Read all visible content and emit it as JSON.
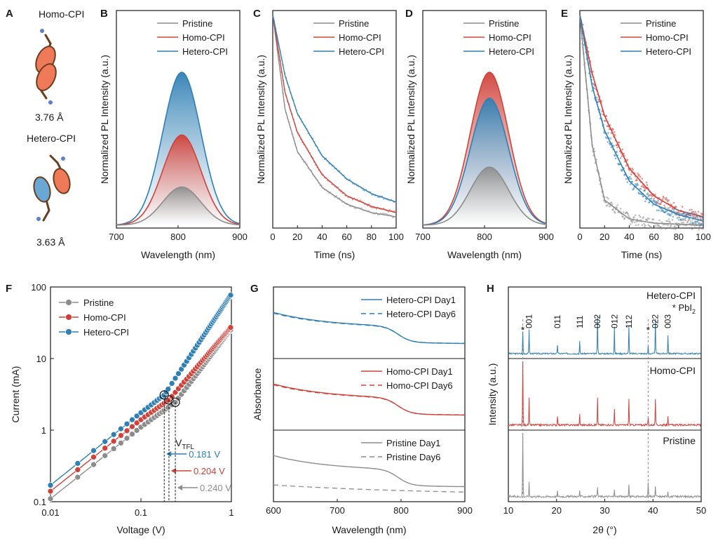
{
  "colors": {
    "pristine": "#8c8c8c",
    "homo": "#d0413a",
    "hetero": "#2f7fb4",
    "axis": "#1a1a1a"
  },
  "panel_a": {
    "label": "A",
    "homo_title": "Homo-CPI",
    "homo_distance": "3.76 Å",
    "hetero_title": "Hetero-CPI",
    "hetero_distance": "3.63 Å"
  },
  "panel_f": {
    "vtfl_label": "V",
    "vtfl_sub": "TFL"
  },
  "chart_data": [
    {
      "panel": "B",
      "type": "line",
      "xlabel": "Wavelength (nm)",
      "ylabel": "Normalized PL Intensity (a.u.)",
      "xlim": [
        700,
        900
      ],
      "xticks": [
        700,
        800,
        900
      ],
      "legend_position": "top-right",
      "series": [
        {
          "name": "Pristine",
          "peak_x": 806,
          "peak_height": 0.25
        },
        {
          "name": "Homo-CPI",
          "peak_x": 806,
          "peak_height": 0.59
        },
        {
          "name": "Hetero-CPI",
          "peak_x": 806,
          "peak_height": 1.0
        }
      ]
    },
    {
      "panel": "C",
      "type": "line",
      "xlabel": "Time (ns)",
      "ylabel": "Normalized PL Intensity (a.u.)",
      "xlim": [
        0,
        100
      ],
      "xticks": [
        0,
        20,
        40,
        60,
        80,
        100
      ],
      "legend_position": "top-right",
      "series": [
        {
          "name": "Pristine",
          "t": [
            0,
            10,
            20,
            40,
            60,
            80,
            100
          ],
          "y": [
            1.0,
            0.55,
            0.35,
            0.18,
            0.1,
            0.06,
            0.04
          ]
        },
        {
          "name": "Homo-CPI",
          "t": [
            0,
            10,
            20,
            40,
            60,
            80,
            100
          ],
          "y": [
            1.0,
            0.63,
            0.44,
            0.24,
            0.14,
            0.09,
            0.06
          ]
        },
        {
          "name": "Hetero-CPI",
          "t": [
            0,
            10,
            20,
            40,
            60,
            80,
            100
          ],
          "y": [
            1.0,
            0.71,
            0.53,
            0.33,
            0.22,
            0.15,
            0.11
          ]
        }
      ]
    },
    {
      "panel": "D",
      "type": "line",
      "xlabel": "Wavelength (nm)",
      "ylabel": "Normalized PL Intensity (a.u.)",
      "xlim": [
        700,
        900
      ],
      "xticks": [
        700,
        800,
        900
      ],
      "legend_position": "top-right",
      "series": [
        {
          "name": "Pristine",
          "peak_x": 808,
          "peak_height": 0.38
        },
        {
          "name": "Homo-CPI",
          "peak_x": 808,
          "peak_height": 1.0
        },
        {
          "name": "Hetero-CPI",
          "peak_x": 808,
          "peak_height": 0.83
        }
      ]
    },
    {
      "panel": "E",
      "type": "scatter",
      "xlabel": "Time (ns)",
      "ylabel": "Normalized PL Intensity (a.u.)",
      "xlim": [
        0,
        100
      ],
      "xticks": [
        0,
        20,
        40,
        60,
        80,
        100
      ],
      "legend_position": "top-right",
      "series": [
        {
          "name": "Pristine",
          "t": [
            0,
            10,
            20,
            40,
            60,
            80,
            100
          ],
          "y": [
            1.0,
            0.38,
            0.12,
            0.03,
            0.01,
            0.005,
            0.0
          ]
        },
        {
          "name": "Homo-CPI",
          "t": [
            0,
            10,
            20,
            40,
            60,
            80,
            100
          ],
          "y": [
            1.0,
            0.72,
            0.52,
            0.27,
            0.14,
            0.07,
            0.04
          ]
        },
        {
          "name": "Hetero-CPI",
          "t": [
            0,
            10,
            20,
            40,
            60,
            80,
            100
          ],
          "y": [
            1.0,
            0.66,
            0.45,
            0.21,
            0.1,
            0.05,
            0.02
          ]
        }
      ]
    },
    {
      "panel": "F",
      "type": "scatter",
      "xlabel": "Voltage (V)",
      "ylabel": "Current (mA)",
      "xscale": "log",
      "yscale": "log",
      "xlim": [
        0.01,
        1
      ],
      "ylim": [
        0.1,
        100
      ],
      "xticks": [
        "0.01",
        "0.1",
        "1"
      ],
      "yticks": [
        "0.1",
        "1",
        "10",
        "100"
      ],
      "legend_position": "top-left",
      "series": [
        {
          "name": "Pristine",
          "x": [
            0.01,
            0.1,
            0.24,
            1
          ],
          "y": [
            0.11,
            1.1,
            2.45,
            26
          ]
        },
        {
          "name": "Homo-CPI",
          "x": [
            0.01,
            0.1,
            0.204,
            1
          ],
          "y": [
            0.14,
            1.4,
            2.65,
            28
          ]
        },
        {
          "name": "Hetero-CPI",
          "x": [
            0.01,
            0.1,
            0.181,
            1
          ],
          "y": [
            0.17,
            1.75,
            3.1,
            80
          ]
        }
      ],
      "annotations": [
        {
          "text": "0.181 V",
          "series": "Hetero-CPI",
          "x": 0.181
        },
        {
          "text": "0.204 V",
          "series": "Homo-CPI",
          "x": 0.204
        },
        {
          "text": "0.240 V",
          "series": "Pristine",
          "x": 0.24
        }
      ]
    },
    {
      "panel": "G",
      "type": "line",
      "xlabel": "Wavelength (nm)",
      "ylabel": "Absorbance",
      "xlim": [
        600,
        900
      ],
      "xticks": [
        600,
        700,
        800,
        900
      ],
      "legend_position": "top-right",
      "subplots": [
        {
          "series": [
            {
              "name": "Hetero-CPI Day1",
              "style": "solid"
            },
            {
              "name": "Hetero-CPI Day6",
              "style": "dashed"
            }
          ]
        },
        {
          "series": [
            {
              "name": "Homo-CPI Day1",
              "style": "solid"
            },
            {
              "name": "Homo-CPI Day6",
              "style": "dashed"
            }
          ]
        },
        {
          "series": [
            {
              "name": "Pristine Day1",
              "style": "solid"
            },
            {
              "name": "Pristine Day6",
              "style": "dashed"
            }
          ]
        }
      ]
    },
    {
      "panel": "H",
      "type": "line",
      "xlabel": "2θ (°)",
      "ylabel": "Intensity (a.u.)",
      "xlim": [
        10,
        50
      ],
      "xticks": [
        10,
        20,
        30,
        40,
        50
      ],
      "legend_note": "* PbI",
      "legend_note_sub": "2",
      "subplots": [
        {
          "name": "Hetero-CPI",
          "peaks": [
            [
              13.0,
              0.45
            ],
            [
              14.3,
              0.5
            ],
            [
              20.2,
              0.18
            ],
            [
              24.8,
              0.25
            ],
            [
              28.5,
              0.78
            ],
            [
              32.0,
              0.55
            ],
            [
              35.0,
              0.58
            ],
            [
              39.0,
              0.15
            ],
            [
              40.5,
              0.72
            ],
            [
              43.1,
              0.38
            ]
          ]
        },
        {
          "name": "Homo-CPI",
          "peaks": [
            [
              13.0,
              1.0
            ],
            [
              14.3,
              0.42
            ],
            [
              20.2,
              0.15
            ],
            [
              24.8,
              0.18
            ],
            [
              28.5,
              0.42
            ],
            [
              32.0,
              0.25
            ],
            [
              35.0,
              0.42
            ],
            [
              39.0,
              0.12
            ],
            [
              40.5,
              0.42
            ],
            [
              43.1,
              0.15
            ]
          ]
        },
        {
          "name": "Pristine",
          "peaks": [
            [
              13.0,
              1.0
            ],
            [
              14.3,
              0.22
            ],
            [
              20.2,
              0.08
            ],
            [
              24.8,
              0.1
            ],
            [
              28.5,
              0.15
            ],
            [
              32.0,
              0.12
            ],
            [
              35.0,
              0.18
            ],
            [
              39.0,
              0.22
            ],
            [
              40.5,
              0.15
            ],
            [
              43.1,
              0.08
            ]
          ]
        }
      ],
      "peak_labels": [
        {
          "text": "*",
          "x": 13.0
        },
        {
          "text": "001",
          "x": 14.3
        },
        {
          "text": "011",
          "x": 20.2
        },
        {
          "text": "111",
          "x": 24.8
        },
        {
          "text": "002",
          "x": 28.5
        },
        {
          "text": "012",
          "x": 32.0
        },
        {
          "text": "112",
          "x": 35.0
        },
        {
          "text": "*",
          "x": 39.0
        },
        {
          "text": "022",
          "x": 40.5
        },
        {
          "text": "003",
          "x": 43.1
        }
      ]
    }
  ]
}
